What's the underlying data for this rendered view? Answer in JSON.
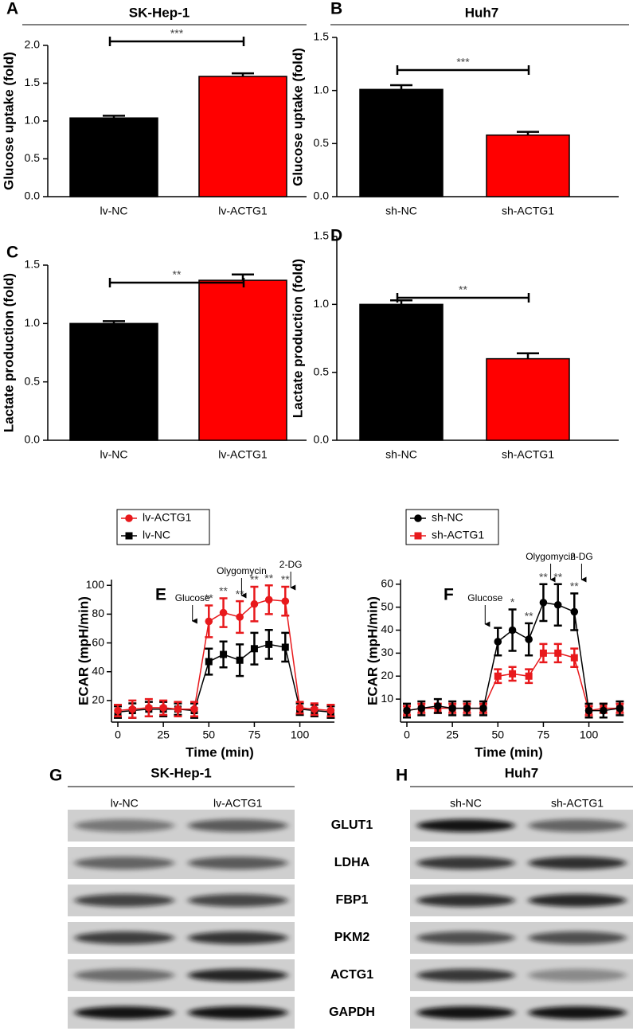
{
  "chart_data": [
    {
      "type": "bar",
      "panel": "A",
      "title": "SK-Hep-1",
      "ylabel": "Glucose uptake (fold)",
      "categories": [
        "lv-NC",
        "lv-ACTG1"
      ],
      "values": [
        1.04,
        1.59
      ],
      "errors": [
        0.03,
        0.04
      ],
      "colors": [
        "#000000",
        "#ff0000"
      ],
      "ylim": [
        0,
        2.0
      ],
      "yticks": [
        {
          "value": 0,
          "label": "0.0"
        },
        {
          "value": 0.5,
          "label": "0.5"
        },
        {
          "value": 1,
          "label": "1.0"
        },
        {
          "value": 1.5,
          "label": "1.5"
        },
        {
          "value": 2,
          "label": "2.0"
        }
      ],
      "significance": "***"
    },
    {
      "type": "bar",
      "panel": "B",
      "title": "Huh7",
      "ylabel": "Glucose uptake (fold)",
      "categories": [
        "sh-NC",
        "sh-ACTG1"
      ],
      "values": [
        1.01,
        0.58
      ],
      "errors": [
        0.04,
        0.03
      ],
      "colors": [
        "#000000",
        "#ff0000"
      ],
      "ylim": [
        0,
        1.5
      ],
      "yticks": [
        {
          "value": 0,
          "label": "0.0"
        },
        {
          "value": 0.5,
          "label": "0.5"
        },
        {
          "value": 1,
          "label": "1.0"
        },
        {
          "value": 1.5,
          "label": "1.5"
        }
      ],
      "significance": "***"
    },
    {
      "type": "bar",
      "panel": "C",
      "ylabel": "Lactate production (fold)",
      "categories": [
        "lv-NC",
        "lv-ACTG1"
      ],
      "values": [
        1.0,
        1.37
      ],
      "errors": [
        0.02,
        0.05
      ],
      "colors": [
        "#000000",
        "#ff0000"
      ],
      "ylim": [
        0,
        1.5
      ],
      "yticks": [
        {
          "value": 0,
          "label": "0.0"
        },
        {
          "value": 0.5,
          "label": "0.5"
        },
        {
          "value": 1,
          "label": "1.0"
        },
        {
          "value": 1.5,
          "label": "1.5"
        }
      ],
      "significance": "**"
    },
    {
      "type": "bar",
      "panel": "D",
      "ylabel": "Lactate production (fold)",
      "categories": [
        "sh-NC",
        "sh-ACTG1"
      ],
      "values": [
        1.0,
        0.6
      ],
      "errors": [
        0.03,
        0.04
      ],
      "colors": [
        "#000000",
        "#ff0000"
      ],
      "ylim": [
        0,
        1.5
      ],
      "yticks": [
        {
          "value": 0,
          "label": "0.0"
        },
        {
          "value": 0.5,
          "label": "0.5"
        },
        {
          "value": 1,
          "label": "1.0"
        },
        {
          "value": 1.5,
          "label": "1.5"
        }
      ],
      "significance": "**"
    },
    {
      "type": "line",
      "panel": "E",
      "xlabel": "Time (min)",
      "ylabel": "ECAR (mpH/min)",
      "legend": "upper left",
      "x": [
        0,
        8,
        17,
        25,
        33,
        42,
        50,
        58,
        67,
        75,
        83,
        92,
        100,
        108,
        117
      ],
      "series": [
        {
          "name": "lv-ACTG1",
          "color": "#e8191c",
          "marker": "circle",
          "values": [
            13,
            14,
            15,
            15,
            14,
            14,
            75,
            81,
            78,
            87,
            90,
            89,
            15,
            14,
            13
          ],
          "errors": [
            4,
            6,
            6,
            5,
            5,
            5,
            11,
            10,
            11,
            12,
            10,
            10,
            4,
            4,
            4
          ]
        },
        {
          "name": "lv-NC",
          "color": "#000000",
          "marker": "square",
          "values": [
            12,
            13,
            14,
            14,
            14,
            13,
            47,
            52,
            48,
            56,
            59,
            57,
            14,
            13,
            12
          ],
          "errors": [
            4,
            5,
            5,
            5,
            4,
            5,
            9,
            9,
            11,
            11,
            10,
            10,
            4,
            4,
            4
          ]
        }
      ],
      "xlim": [
        -3.5,
        119
      ],
      "xticks": [
        0,
        25,
        50,
        75,
        100
      ],
      "ylim": [
        5,
        104
      ],
      "yticks": [
        20,
        40,
        60,
        80,
        100
      ],
      "stars": [
        {
          "x": 50,
          "label": "**"
        },
        {
          "x": 58,
          "label": "**"
        },
        {
          "x": 67,
          "label": "**"
        },
        {
          "x": 75,
          "label": "**"
        },
        {
          "x": 83,
          "label": "**"
        },
        {
          "x": 92,
          "label": "**"
        }
      ],
      "annotations": [
        {
          "text": "Glucose",
          "x": 41
        },
        {
          "text": "Olygomycin",
          "x": 68
        },
        {
          "text": "2-DG",
          "x": 95
        }
      ]
    },
    {
      "type": "line",
      "panel": "F",
      "xlabel": "Time (min)",
      "ylabel": "ECAR (mpH/min)",
      "legend": "upper left",
      "x": [
        0,
        8,
        17,
        25,
        33,
        42,
        50,
        58,
        67,
        75,
        83,
        92,
        100,
        108,
        117
      ],
      "series": [
        {
          "name": "sh-NC",
          "color": "#000000",
          "marker": "circle",
          "values": [
            5,
            6,
            7,
            6,
            6,
            6,
            35,
            40,
            36,
            52,
            51,
            48,
            5,
            5,
            6
          ],
          "errors": [
            3,
            3,
            3,
            3,
            3,
            3,
            6,
            9,
            7,
            8,
            9,
            8,
            3,
            3,
            3
          ]
        },
        {
          "name": "sh-ACTG1",
          "color": "#e8191c",
          "marker": "square",
          "values": [
            5,
            6,
            6,
            6,
            6,
            6,
            20,
            21,
            20,
            30,
            30,
            28,
            5,
            6,
            6
          ],
          "errors": [
            2,
            2,
            2,
            2,
            2,
            2,
            3,
            3,
            3,
            4,
            4,
            4,
            2,
            2,
            2
          ]
        }
      ],
      "xlim": [
        -3.5,
        119
      ],
      "xticks": [
        0,
        25,
        50,
        75,
        100
      ],
      "ylim": [
        0,
        62
      ],
      "yticks": [
        10,
        20,
        30,
        40,
        50,
        60
      ],
      "stars": [
        {
          "x": 58,
          "label": "*"
        },
        {
          "x": 67,
          "label": "**"
        },
        {
          "x": 75,
          "label": "**"
        },
        {
          "x": 83,
          "label": "**"
        },
        {
          "x": 92,
          "label": "**"
        }
      ],
      "annotations": [
        {
          "text": "Glucose",
          "x": 43
        },
        {
          "text": "Olygomycin",
          "x": 79
        },
        {
          "text": "2-DG",
          "x": 96
        }
      ]
    }
  ],
  "blots": [
    {
      "panel": "G",
      "title": "SK-Hep-1",
      "lanes": [
        "lv-NC",
        "lv-ACTG1"
      ]
    },
    {
      "panel": "H",
      "title": "Huh7",
      "lanes": [
        "sh-NC",
        "sh-ACTG1"
      ]
    }
  ],
  "proteins": [
    "GLUT1",
    "LDHA",
    "FBP1",
    "PKM2",
    "ACTG1",
    "GAPDH"
  ]
}
